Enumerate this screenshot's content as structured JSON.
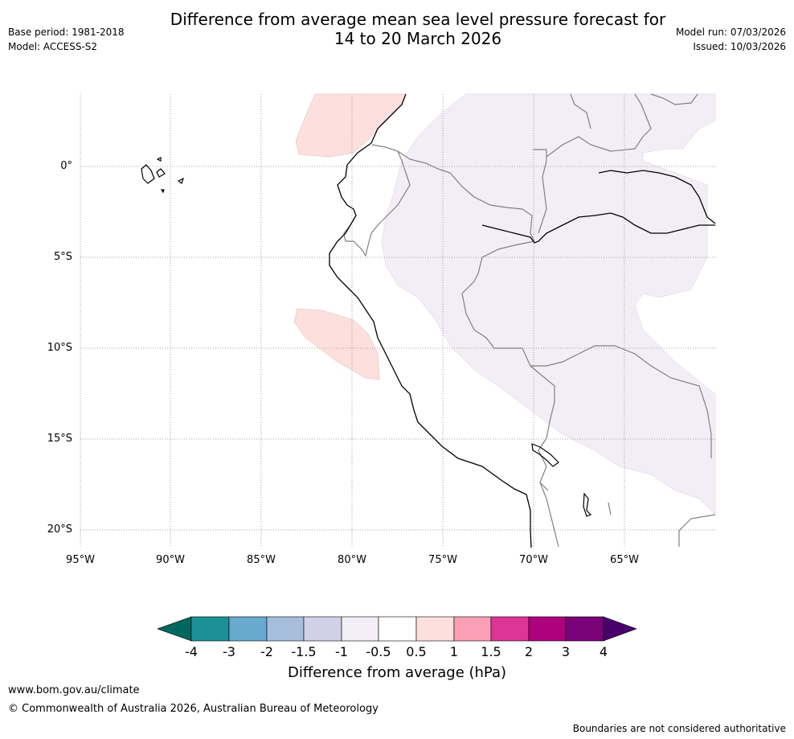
{
  "header": {
    "title_line1": "Difference from average mean sea level pressure forecast for",
    "title_line2": "14 to 20 March 2026",
    "base_period": "Base period: 1981-2018",
    "model": "Model: ACCESS-S2",
    "model_run": "Model run: 07/03/2026",
    "issued": "Issued: 10/03/2026"
  },
  "map": {
    "lat_labels": [
      "0°",
      "5°S",
      "10°S",
      "15°S",
      "20°S"
    ],
    "lon_labels": [
      "95°W",
      "90°W",
      "85°W",
      "80°W",
      "75°W",
      "70°W",
      "65°W"
    ],
    "colors": {
      "positive_light": "#fde0dd",
      "negative_light": "#f3eef6",
      "coast": "#000000",
      "borders": "#808080",
      "grid": "#888888"
    }
  },
  "colorbar": {
    "ticks": [
      "-4",
      "-3",
      "-2",
      "-1.5",
      "-1",
      "-0.5",
      "0.5",
      "1",
      "1.5",
      "2",
      "3",
      "4"
    ],
    "colors": [
      "#00665e",
      "#1b9096",
      "#67a9cf",
      "#a6bddb",
      "#d0d1e6",
      "#f3eef6",
      "#ffffff",
      "#fde0dd",
      "#fa9fb5",
      "#dd3497",
      "#ae017e",
      "#7a0177",
      "#49006a"
    ],
    "label": "Difference from average (hPa)"
  },
  "footer": {
    "website": "www.bom.gov.au/climate",
    "copyright": "© Commonwealth of Australia 2026, Australian Bureau of Meteorology",
    "disclaimer": "Boundaries are not considered authoritative"
  }
}
